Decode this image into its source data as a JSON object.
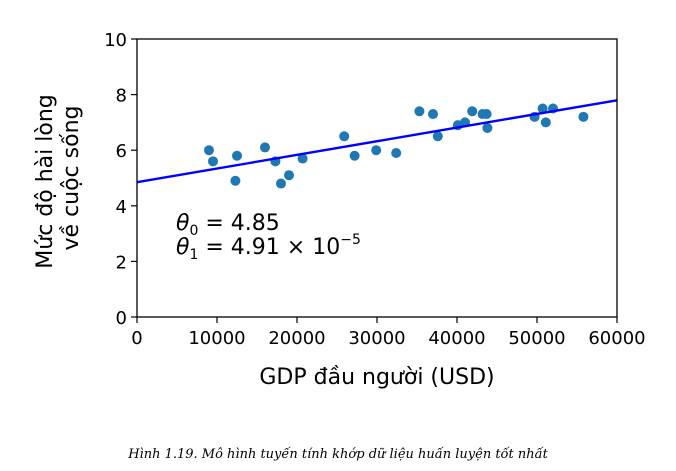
{
  "caption": "Hình 1.19. Mô hình tuyến tính khớp dữ liệu huấn luyện tốt nhất",
  "chart_data": {
    "type": "scatter",
    "xlabel": "GDP đầu người (USD)",
    "ylabel_lines": [
      "Mức độ hài lòng",
      "về cuộc sống"
    ],
    "xlim": [
      0,
      60000
    ],
    "ylim": [
      0,
      10
    ],
    "x_ticks": [
      0,
      10000,
      20000,
      30000,
      40000,
      50000,
      60000
    ],
    "y_ticks": [
      0,
      2,
      4,
      6,
      8,
      10
    ],
    "grid": false,
    "point_color": "#1f77b4",
    "line_color": "#0000ff",
    "points": [
      {
        "x": 9000,
        "y": 6.0
      },
      {
        "x": 9500,
        "y": 5.6
      },
      {
        "x": 12300,
        "y": 4.9
      },
      {
        "x": 12500,
        "y": 5.8
      },
      {
        "x": 16000,
        "y": 6.1
      },
      {
        "x": 17300,
        "y": 5.6
      },
      {
        "x": 18000,
        "y": 4.8
      },
      {
        "x": 19000,
        "y": 5.1
      },
      {
        "x": 20700,
        "y": 5.7
      },
      {
        "x": 25900,
        "y": 6.5
      },
      {
        "x": 27200,
        "y": 5.8
      },
      {
        "x": 29900,
        "y": 6.0
      },
      {
        "x": 32400,
        "y": 5.9
      },
      {
        "x": 35300,
        "y": 7.4
      },
      {
        "x": 37000,
        "y": 7.3
      },
      {
        "x": 37600,
        "y": 6.5
      },
      {
        "x": 40100,
        "y": 6.9
      },
      {
        "x": 41000,
        "y": 7.0
      },
      {
        "x": 41900,
        "y": 7.4
      },
      {
        "x": 43200,
        "y": 7.3
      },
      {
        "x": 43700,
        "y": 7.3
      },
      {
        "x": 43800,
        "y": 6.8
      },
      {
        "x": 49700,
        "y": 7.2
      },
      {
        "x": 50700,
        "y": 7.5
      },
      {
        "x": 51100,
        "y": 7.0
      },
      {
        "x": 52000,
        "y": 7.5
      },
      {
        "x": 55800,
        "y": 7.2
      }
    ],
    "fit_line": {
      "theta0": 4.85,
      "theta1": 4.91e-05
    },
    "annotations": {
      "theta0_symbol": "θ",
      "theta0_sub": "0",
      "theta0_value": " = 4.85",
      "theta1_symbol": "θ",
      "theta1_sub": "1",
      "theta1_value": " = 4.91 × 10",
      "theta1_exp": "−5",
      "color": "#0000ff"
    }
  }
}
